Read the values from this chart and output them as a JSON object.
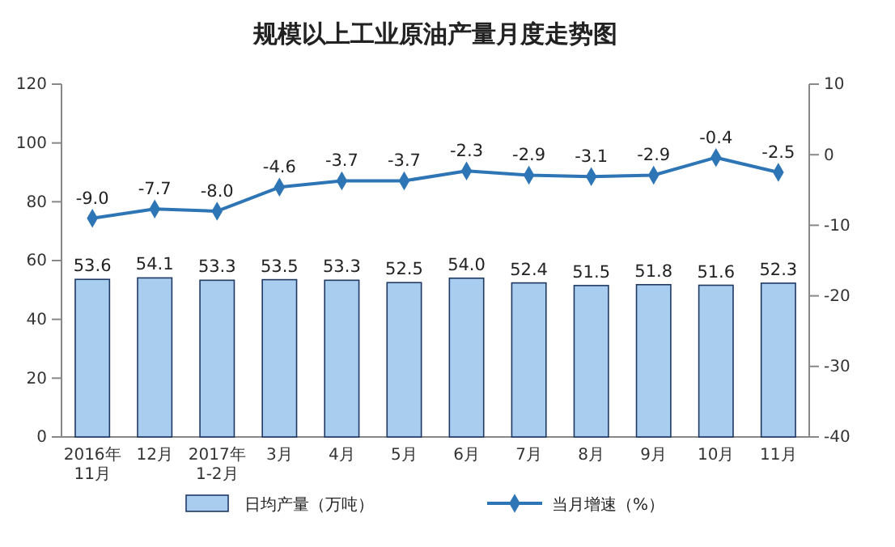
{
  "chart_data": {
    "type": "bar",
    "title": "规模以上工业原油产量月度走势图",
    "categories": [
      "2016年\n11月",
      "12月",
      "2017年\n1-2月",
      "3月",
      "4月",
      "5月",
      "6月",
      "7月",
      "8月",
      "9月",
      "10月",
      "11月"
    ],
    "series": [
      {
        "name": "日均产量（万吨）",
        "color": "#a9cdee",
        "values": [
          53.6,
          54.1,
          53.3,
          53.5,
          53.3,
          52.5,
          54.0,
          52.4,
          51.5,
          51.8,
          51.6,
          52.3
        ],
        "value_labels": [
          "53.6",
          "54.1",
          "53.3",
          "53.5",
          "53.3",
          "52.5",
          "54.0",
          "52.4",
          "51.5",
          "51.8",
          "51.6",
          "52.3"
        ]
      },
      {
        "name": "当月增速（%）",
        "type": "line",
        "axis": "y2",
        "color": "#2e75b6",
        "marker": "diamond",
        "values": [
          -9.0,
          -7.7,
          -8.0,
          -4.6,
          -3.7,
          -3.7,
          -2.3,
          -2.9,
          -3.1,
          -2.9,
          -0.4,
          -2.5
        ],
        "value_labels": [
          "-9.0",
          "-7.7",
          "-8.0",
          "-4.6",
          "-3.7",
          "-3.7",
          "-2.3",
          "-2.9",
          "-3.1",
          "-2.9",
          "-0.4",
          "-2.5"
        ]
      }
    ],
    "ylim": [
      0,
      120
    ],
    "yticks": [
      0,
      20,
      40,
      60,
      80,
      100,
      120
    ],
    "y2lim": [
      -40,
      10
    ],
    "y2ticks": [
      -40,
      -30,
      -20,
      -10,
      0,
      10
    ],
    "legend": "bottom"
  }
}
